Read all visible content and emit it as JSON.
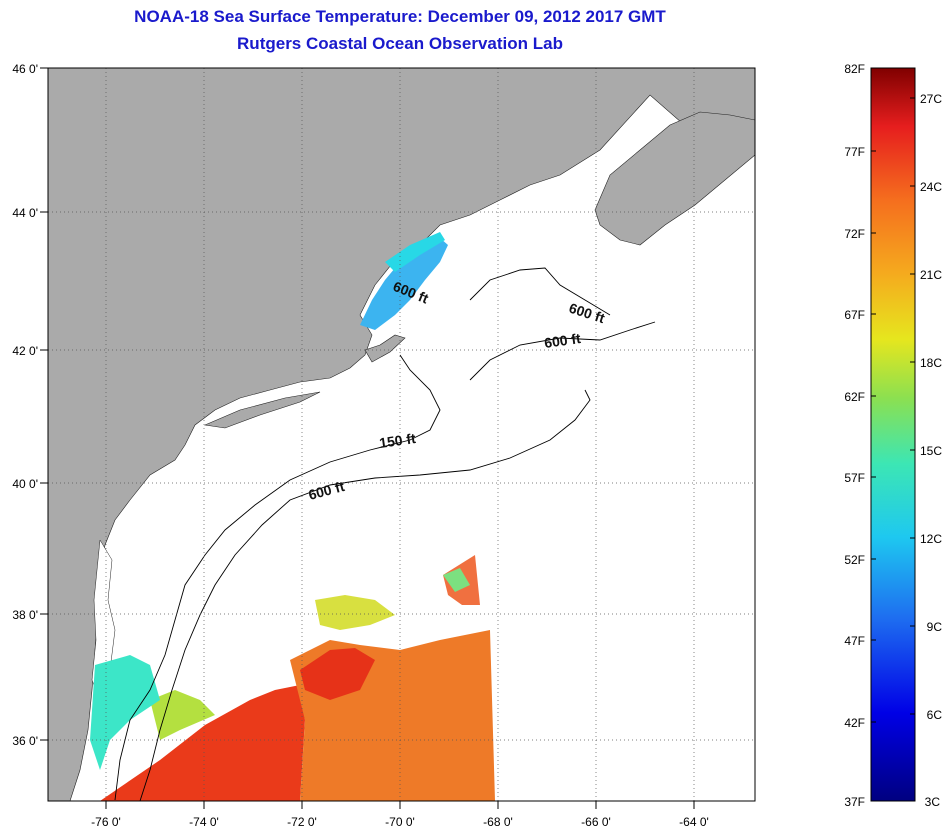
{
  "header": {
    "title_line1": "NOAA-18 Sea Surface Temperature:  December 09, 2012 2017 GMT",
    "title_line2": "Rutgers Coastal Ocean Observation Lab"
  },
  "map": {
    "lat_labels": [
      "46 0'",
      "44 0'",
      "42 0'",
      "40 0'",
      "38 0'",
      "36 0'"
    ],
    "lon_labels": [
      "-76 0'",
      "-74 0'",
      "-72 0'",
      "-70 0'",
      "-68 0'",
      "-66 0'",
      "-64 0'"
    ],
    "contour_labels": [
      "600 ft",
      "600 ft",
      "600 ft",
      "150 ft",
      "600 ft"
    ],
    "colors": {
      "land": "#aaaaaa",
      "ocean_no_data": "#ffffff",
      "warm_sst": "#ee5a1a",
      "cool_sst": "#28a8ee"
    }
  },
  "colorbar": {
    "fahrenheit_ticks": [
      "82F",
      "77F",
      "72F",
      "67F",
      "62F",
      "57F",
      "52F",
      "47F",
      "42F",
      "37F"
    ],
    "celsius_ticks": [
      "27C",
      "24C",
      "21C",
      "18C",
      "15C",
      "12C",
      "9C",
      "6C",
      "3C"
    ]
  }
}
